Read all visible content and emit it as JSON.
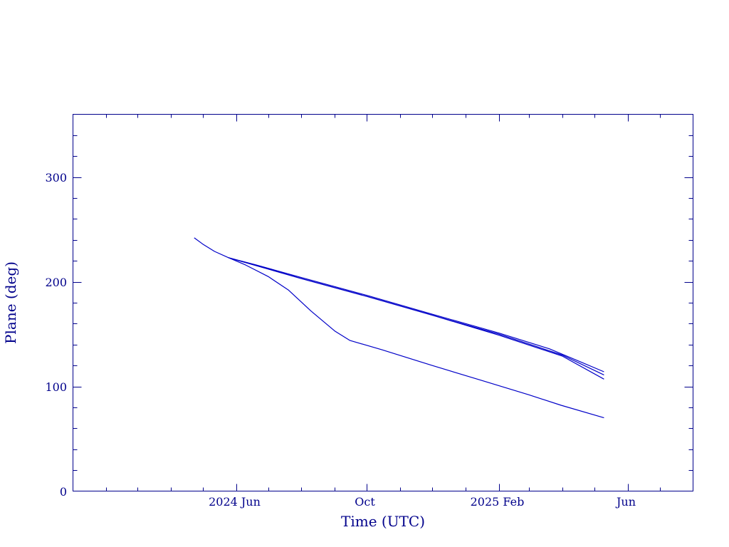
{
  "chart_data": {
    "type": "line",
    "title": "",
    "xlabel": "Time (UTC)",
    "ylabel": "Plane (deg)",
    "x_range": [
      "2024-01-01",
      "2025-08-01"
    ],
    "ylim": [
      0,
      360
    ],
    "grid": false,
    "legend": "none",
    "colors": {
      "axes": "#00008b",
      "lines": "#0000c8"
    },
    "x_ticks": [
      {
        "date": "2024-06-01",
        "label": "2024 Jun"
      },
      {
        "date": "2024-10-01",
        "label": "Oct"
      },
      {
        "date": "2025-02-01",
        "label": "2025 Feb"
      },
      {
        "date": "2025-06-01",
        "label": "Jun"
      }
    ],
    "x_minor_ticks": [
      "2024-02-01",
      "2024-03-01",
      "2024-04-01",
      "2024-05-01",
      "2024-07-01",
      "2024-08-01",
      "2024-09-01",
      "2024-11-01",
      "2024-12-01",
      "2025-01-01",
      "2025-03-01",
      "2025-04-01",
      "2025-05-01",
      "2025-07-01"
    ],
    "y_ticks": [
      {
        "value": 0,
        "label": "0"
      },
      {
        "value": 100,
        "label": "100"
      },
      {
        "value": 200,
        "label": "200"
      },
      {
        "value": 300,
        "label": "300"
      }
    ],
    "y_minor_step": 20,
    "series": [
      {
        "points": [
          [
            "2024-04-23",
            242
          ],
          [
            "2024-05-01",
            236
          ],
          [
            "2024-05-12",
            229
          ],
          [
            "2024-05-25",
            223
          ],
          [
            "2024-06-20",
            216
          ],
          [
            "2024-08-01",
            204
          ],
          [
            "2024-10-01",
            187
          ],
          [
            "2024-12-01",
            169
          ],
          [
            "2025-02-01",
            151
          ],
          [
            "2025-03-20",
            136
          ],
          [
            "2025-04-10",
            127
          ],
          [
            "2025-05-10",
            114
          ]
        ]
      },
      {
        "points": [
          [
            "2024-05-25",
            223
          ],
          [
            "2024-08-01",
            203
          ],
          [
            "2024-10-01",
            186
          ],
          [
            "2024-12-01",
            168
          ],
          [
            "2025-02-01",
            150
          ],
          [
            "2025-04-01",
            130
          ],
          [
            "2025-05-10",
            111
          ]
        ]
      },
      {
        "points": [
          [
            "2024-05-25",
            223
          ],
          [
            "2024-08-01",
            203
          ],
          [
            "2024-10-01",
            186
          ],
          [
            "2024-12-01",
            168
          ],
          [
            "2025-02-01",
            149
          ],
          [
            "2025-04-01",
            129
          ],
          [
            "2025-05-10",
            107
          ]
        ]
      },
      {
        "points": [
          [
            "2024-05-25",
            223
          ],
          [
            "2024-06-10",
            216
          ],
          [
            "2024-07-01",
            205
          ],
          [
            "2024-07-20",
            192
          ],
          [
            "2024-08-10",
            172
          ],
          [
            "2024-09-01",
            153
          ],
          [
            "2024-09-15",
            144
          ],
          [
            "2024-10-15",
            135
          ],
          [
            "2024-12-01",
            120
          ],
          [
            "2025-01-15",
            106
          ],
          [
            "2025-03-01",
            92
          ],
          [
            "2025-03-31",
            82
          ],
          [
            "2025-05-10",
            70
          ]
        ]
      }
    ]
  }
}
